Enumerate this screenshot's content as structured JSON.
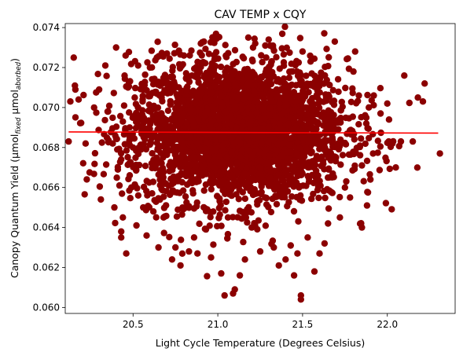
{
  "chart_data": {
    "type": "scatter",
    "title": "CAV TEMP x CQY",
    "xlabel": "Light Cycle Temperature (Degrees Celsius)",
    "ylabel_main": "Canopy Quantum Yield (μmol",
    "ylabel_sub1": "fixed",
    "ylabel_mid": " μmol",
    "ylabel_sub2": "aborbed",
    "ylabel_end": ")",
    "xlim": [
      20.1,
      22.4
    ],
    "ylim": [
      0.0597,
      0.0742
    ],
    "x_ticks": [
      20.5,
      21.0,
      21.5,
      22.0
    ],
    "x_tick_labels": [
      "20.5",
      "21.0",
      "21.5",
      "22.0"
    ],
    "y_ticks": [
      0.06,
      0.062,
      0.064,
      0.066,
      0.068,
      0.07,
      0.072,
      0.074
    ],
    "y_tick_labels": [
      "0.060",
      "0.062",
      "0.064",
      "0.066",
      "0.068",
      "0.070",
      "0.072",
      "0.074"
    ],
    "grid": false,
    "legend": "none",
    "point_color": "#8B0000",
    "trend_color": "#ff0000",
    "trend_line": {
      "x": [
        20.12,
        22.3
      ],
      "y": [
        0.06878,
        0.06872
      ]
    },
    "cluster": {
      "x_center": 21.12,
      "x_sd": 0.32,
      "y_center": 0.0688,
      "y_sd": 0.0018,
      "n": 3000
    },
    "points": [
      [
        20.12,
        0.0683
      ],
      [
        20.13,
        0.0703
      ],
      [
        20.15,
        0.0725
      ],
      [
        20.16,
        0.0709
      ],
      [
        20.22,
        0.0682
      ],
      [
        20.27,
        0.07
      ],
      [
        20.3,
        0.0709
      ],
      [
        20.31,
        0.0654
      ],
      [
        20.35,
        0.0698
      ],
      [
        20.38,
        0.0682
      ],
      [
        20.39,
        0.065
      ],
      [
        20.4,
        0.073
      ],
      [
        20.42,
        0.0661
      ],
      [
        20.43,
        0.0674
      ],
      [
        20.44,
        0.0693
      ],
      [
        20.45,
        0.0716
      ],
      [
        20.41,
        0.0669
      ],
      [
        20.47,
        0.071
      ],
      [
        20.43,
        0.0638
      ],
      [
        20.43,
        0.0635
      ],
      [
        20.44,
        0.0645
      ],
      [
        20.46,
        0.0627
      ],
      [
        20.49,
        0.066
      ],
      [
        20.5,
        0.068
      ],
      [
        20.51,
        0.0705
      ],
      [
        20.52,
        0.0641
      ],
      [
        20.53,
        0.0721
      ],
      [
        20.55,
        0.0688
      ],
      [
        20.56,
        0.065
      ],
      [
        20.58,
        0.0636
      ],
      [
        20.6,
        0.072
      ],
      [
        20.62,
        0.0648
      ],
      [
        20.64,
        0.0725
      ],
      [
        20.65,
        0.063
      ],
      [
        20.68,
        0.0645
      ],
      [
        20.7,
        0.0727
      ],
      [
        20.73,
        0.0624
      ],
      [
        20.75,
        0.063
      ],
      [
        20.78,
        0.0621
      ],
      [
        20.8,
        0.0726
      ],
      [
        20.83,
        0.0628
      ],
      [
        20.86,
        0.0635
      ],
      [
        20.88,
        0.0627
      ],
      [
        20.9,
        0.0732
      ],
      [
        20.93,
        0.0639
      ],
      [
        20.96,
        0.0625
      ],
      [
        20.98,
        0.0724
      ],
      [
        21.02,
        0.0617
      ],
      [
        21.04,
        0.0606
      ],
      [
        21.06,
        0.0645
      ],
      [
        21.09,
        0.0607
      ],
      [
        21.1,
        0.0609
      ],
      [
        21.13,
        0.0616
      ],
      [
        21.16,
        0.0624
      ],
      [
        21.18,
        0.0735
      ],
      [
        21.2,
        0.064
      ],
      [
        21.22,
        0.0641
      ],
      [
        21.25,
        0.0628
      ],
      [
        21.28,
        0.0731
      ],
      [
        21.3,
        0.0734
      ],
      [
        21.33,
        0.063
      ],
      [
        21.36,
        0.0621
      ],
      [
        21.4,
        0.0624
      ],
      [
        21.43,
        0.0631
      ],
      [
        21.45,
        0.0616
      ],
      [
        21.47,
        0.0627
      ],
      [
        21.49,
        0.0604
      ],
      [
        21.49,
        0.0606
      ],
      [
        21.5,
        0.0728
      ],
      [
        21.53,
        0.0635
      ],
      [
        21.57,
        0.0618
      ],
      [
        21.6,
        0.0627
      ],
      [
        21.63,
        0.0632
      ],
      [
        21.65,
        0.0642
      ],
      [
        21.69,
        0.0733
      ],
      [
        21.72,
        0.0645
      ],
      [
        21.75,
        0.066
      ],
      [
        21.78,
        0.0655
      ],
      [
        21.8,
        0.0718
      ],
      [
        21.81,
        0.0728
      ],
      [
        21.85,
        0.064
      ],
      [
        21.88,
        0.0651
      ],
      [
        21.9,
        0.0664
      ],
      [
        21.92,
        0.0706
      ],
      [
        21.96,
        0.0697
      ],
      [
        22.0,
        0.0702
      ],
      [
        22.01,
        0.0694
      ],
      [
        22.03,
        0.0682
      ],
      [
        22.05,
        0.067
      ],
      [
        22.08,
        0.0683
      ],
      [
        22.1,
        0.0716
      ],
      [
        22.15,
        0.0683
      ],
      [
        22.18,
        0.0705
      ],
      [
        22.21,
        0.0703
      ],
      [
        22.22,
        0.0712
      ],
      [
        22.31,
        0.0677
      ]
    ]
  }
}
